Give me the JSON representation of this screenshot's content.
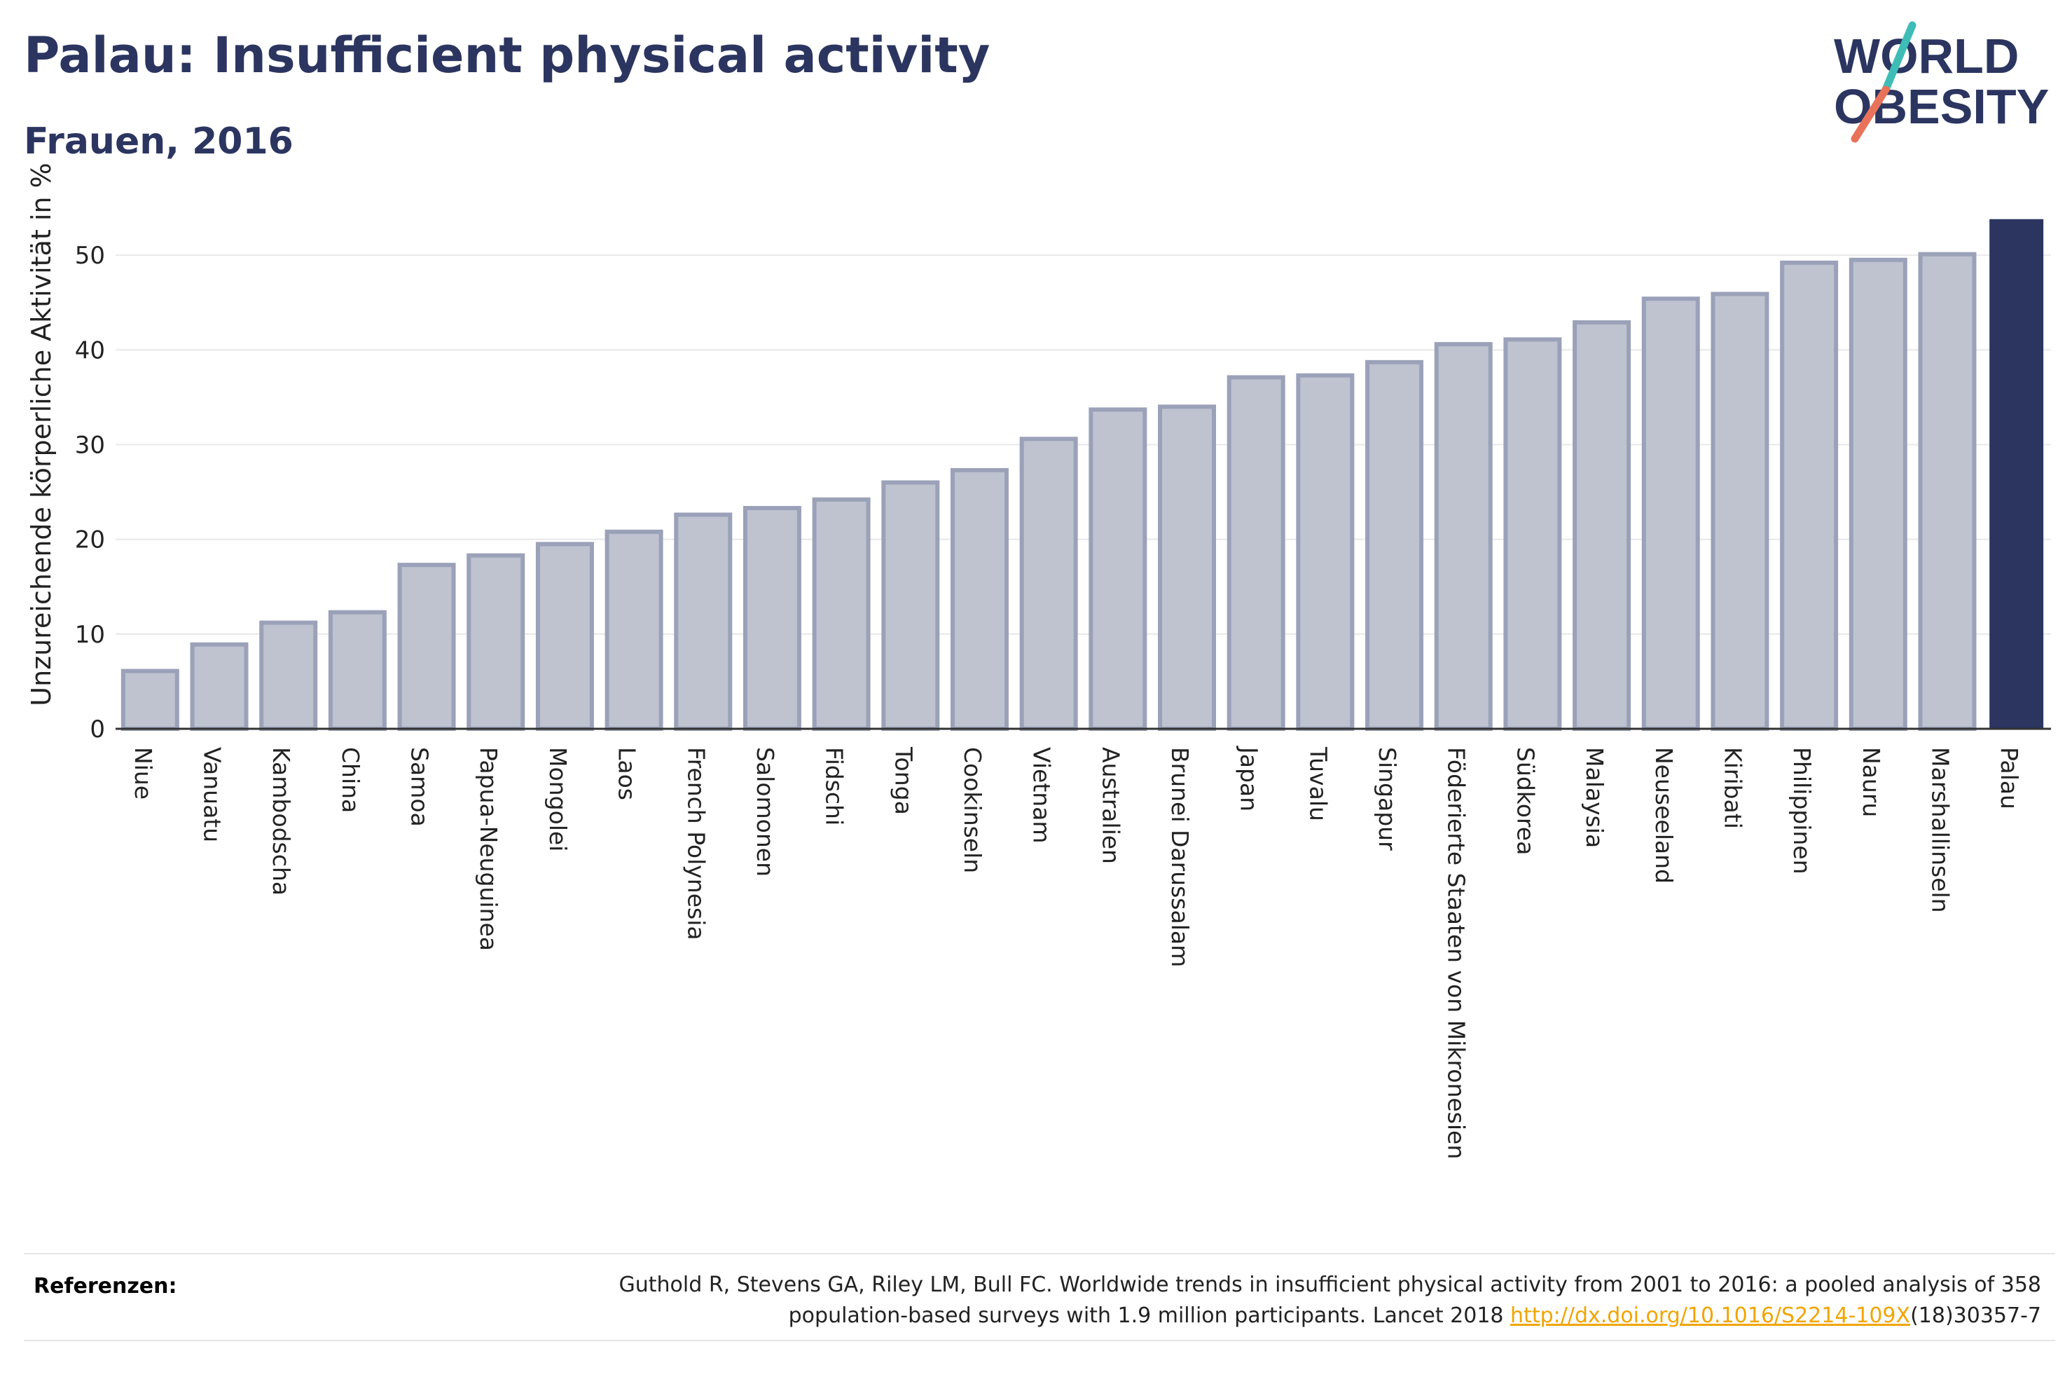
{
  "header": {
    "title": "Palau: Insufficient physical activity",
    "subtitle": "Frauen, 2016"
  },
  "logo": {
    "line1": "WORLD",
    "line2": "OBESITY",
    "accent_top": "#3dbdb6",
    "accent_bottom": "#e8735a",
    "text_color": "#2b3560"
  },
  "chart_data": {
    "type": "bar",
    "ylabel": "Unzureichende körperliche Aktivität in %",
    "ylim": [
      0,
      54
    ],
    "yticks": [
      0,
      10,
      20,
      30,
      40,
      50
    ],
    "grid": true,
    "highlight": "Palau",
    "colors": {
      "bar_fill": "#bfc3d0",
      "bar_edge": "#9aa1b8",
      "highlight": "#2b3560",
      "grid": "#e8e8e8"
    },
    "categories": [
      "Niue",
      "Vanuatu",
      "Kambodscha",
      "China",
      "Samoa",
      "Papua-Neuguinea",
      "Mongolei",
      "Laos",
      "French Polynesia",
      "Salomonen",
      "Fidschi",
      "Tonga",
      "Cookinseln",
      "Vietnam",
      "Australien",
      "Brunei Darussalam",
      "Japan",
      "Tuvalu",
      "Singapur",
      "Föderierte Staaten von Mikronesien",
      "Südkorea",
      "Malaysia",
      "Neuseeland",
      "Kiribati",
      "Philippinen",
      "Nauru",
      "Marshallinseln",
      "Palau"
    ],
    "values": [
      6.1,
      8.9,
      11.2,
      12.3,
      17.3,
      18.3,
      19.5,
      20.8,
      22.6,
      23.3,
      24.2,
      26.0,
      27.3,
      30.6,
      33.7,
      34.0,
      37.1,
      37.3,
      38.7,
      40.6,
      41.1,
      42.9,
      45.4,
      45.9,
      49.2,
      49.5,
      50.1,
      53.8
    ]
  },
  "references": {
    "label": "Referenzen:",
    "text_line1": "Guthold R, Stevens GA, Riley LM, Bull FC. Worldwide trends in insufficient physical activity from 2001 to 2016: a pooled analysis of 358",
    "text_line2_pre": "population-based surveys with 1.9 million participants. Lancet 2018 ",
    "link": "http://dx.doi.org/10.1016/S2214-109X",
    "text_line2_post": "(18)30357-7"
  }
}
